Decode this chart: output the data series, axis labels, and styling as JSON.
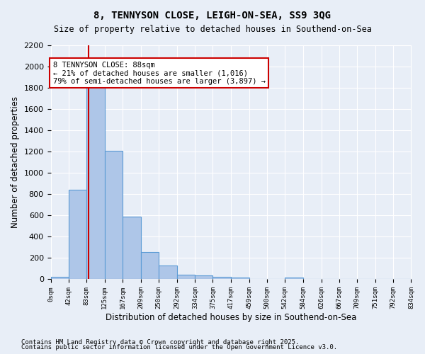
{
  "title1": "8, TENNYSON CLOSE, LEIGH-ON-SEA, SS9 3QG",
  "title2": "Size of property relative to detached houses in Southend-on-Sea",
  "xlabel": "Distribution of detached houses by size in Southend-on-Sea",
  "ylabel": "Number of detached properties",
  "bin_edges": [
    0,
    42,
    83,
    125,
    167,
    209,
    250,
    292,
    334,
    375,
    417,
    459,
    500,
    542,
    584,
    626,
    667,
    709,
    751,
    792,
    834
  ],
  "bar_heights": [
    25,
    840,
    1820,
    1210,
    590,
    255,
    130,
    45,
    35,
    25,
    15,
    0,
    0,
    15,
    0,
    0,
    0,
    0,
    0,
    0
  ],
  "bar_color": "#aec6e8",
  "bar_edge_color": "#5b9bd5",
  "property_size": 88,
  "vline_color": "#cc0000",
  "annotation_text": "8 TENNYSON CLOSE: 88sqm\n← 21% of detached houses are smaller (1,016)\n79% of semi-detached houses are larger (3,897) →",
  "annotation_box_color": "#ffffff",
  "annotation_box_edge": "#cc0000",
  "ylim": [
    0,
    2200
  ],
  "yticks": [
    0,
    200,
    400,
    600,
    800,
    1000,
    1200,
    1400,
    1600,
    1800,
    2000,
    2200
  ],
  "background_color": "#e8eef7",
  "grid_color": "#ffffff",
  "footer1": "Contains HM Land Registry data © Crown copyright and database right 2025.",
  "footer2": "Contains public sector information licensed under the Open Government Licence v3.0."
}
